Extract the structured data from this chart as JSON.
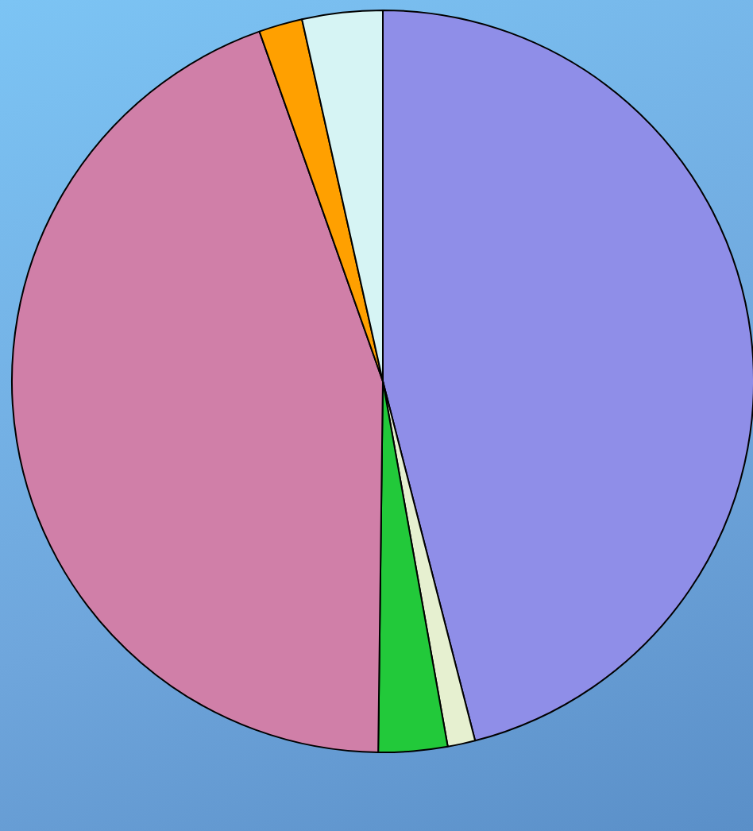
{
  "chart_data": {
    "type": "pie",
    "categories": [
      null,
      null,
      null,
      null,
      null,
      null
    ],
    "values": [
      46,
      1.2,
      3,
      44.4,
      1.9,
      3.5
    ],
    "colors": [
      "#8f8ee8",
      "#e6f0d0",
      "#22c93a",
      "#d07fa8",
      "#ffa000",
      "#d6f4f4"
    ],
    "legend": false
  }
}
